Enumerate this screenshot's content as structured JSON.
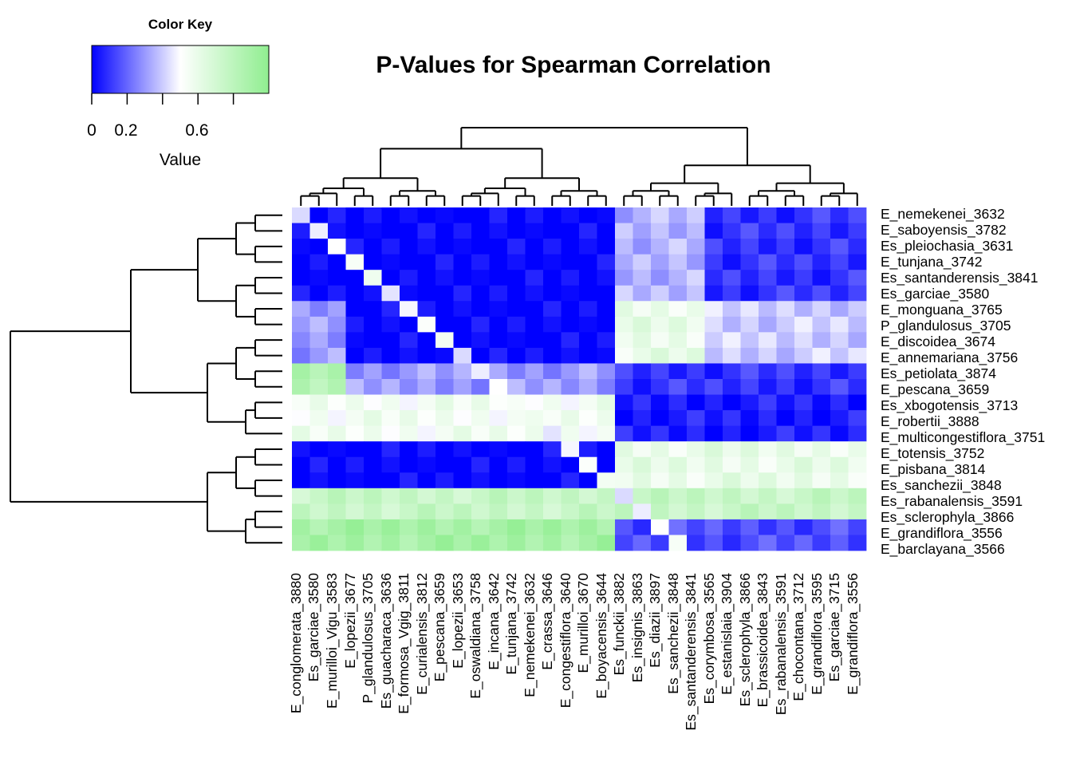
{
  "chart_data": {
    "type": "heatmap",
    "title": "P-Values for Spearman Correlation",
    "color_key": {
      "title": "Color Key",
      "xlabel": "Value",
      "ticks": [
        "0",
        "0.2",
        "0.6"
      ],
      "tick_values": [
        0,
        0.2,
        0.4,
        0.6,
        0.8
      ],
      "range": [
        0,
        1
      ],
      "colors": [
        "#0000ff",
        "#ffffff",
        "#90ee90"
      ]
    },
    "row_labels": [
      "E_nemekenei_3632",
      "E_saboyensis_3782",
      "Es_pleiochasia_3631",
      "E_tunjana_3742",
      "Es_santanderensis_3841",
      "Es_garciae_3580",
      "E_monguana_3765",
      "P_glandulosus_3705",
      "E_discoidea_3674",
      "E_annemariana_3756",
      "Es_petiolata_3874",
      "E_pescana_3659",
      "Es_xbogotensis_3713",
      "E_robertii_3888",
      "E_multicongestiflora_3751",
      "E_totensis_3752",
      "E_pisbana_3814",
      "Es_sanchezii_3848",
      "Es_rabanalensis_3591",
      "Es_sclerophyla_3866",
      "E_grandiflora_3556",
      "E_barclayana_3566"
    ],
    "col_labels": [
      "E_conglomerata_3880",
      "Es_garciae_3580",
      "E_murilloi_Vigu_3583",
      "E_lopezii_3677",
      "P_glandulosus_3705",
      "Es_guacharaca_3636",
      "E_formosa_Vgig_3811",
      "E_curialensis_3812",
      "E_pescana_3659",
      "E_lopezii_3653",
      "E_oswaldiana_3758",
      "E_incana_3642",
      "E_tunjana_3742",
      "E_nemekenei_3632",
      "E_crassa_3646",
      "E_congestiflora_3640",
      "E_murilloi_3670",
      "E_boyacensis_3644",
      "Es_funckii_3882",
      "Es_insignis_3863",
      "Es_diazii_3897",
      "Es_sanchezii_3848",
      "Es_santanderensis_3841",
      "Es_corymbosa_3565",
      "E_estanislaia_3904",
      "Es_sclerophyla_3866",
      "E_brassicoidea_3843",
      "Es_rabanalensis_3591",
      "E_chocontana_3712",
      "E_grandiflora_3595",
      "Es_garciae_3715",
      "E_grandiflora_3556"
    ],
    "blocks": [
      {
        "rows": [
          0,
          5
        ],
        "cols": [
          0,
          17
        ],
        "value": 0.0
      },
      {
        "rows": [
          0,
          5
        ],
        "cols": [
          18,
          22
        ],
        "value": 0.35
      },
      {
        "rows": [
          0,
          5
        ],
        "cols": [
          23,
          31
        ],
        "value": 0.1
      },
      {
        "rows": [
          6,
          9
        ],
        "cols": [
          0,
          2
        ],
        "value": 0.3
      },
      {
        "rows": [
          6,
          9
        ],
        "cols": [
          3,
          17
        ],
        "value": 0.0
      },
      {
        "rows": [
          6,
          9
        ],
        "cols": [
          18,
          22
        ],
        "value": 0.6
      },
      {
        "rows": [
          6,
          9
        ],
        "cols": [
          23,
          31
        ],
        "value": 0.4
      },
      {
        "rows": [
          10,
          11
        ],
        "cols": [
          0,
          2
        ],
        "value": 0.85
      },
      {
        "rows": [
          10,
          11
        ],
        "cols": [
          3,
          17
        ],
        "value": 0.3
      },
      {
        "rows": [
          10,
          11
        ],
        "cols": [
          18,
          31
        ],
        "value": 0.1
      },
      {
        "rows": [
          12,
          14
        ],
        "cols": [
          0,
          17
        ],
        "value": 0.55
      },
      {
        "rows": [
          12,
          14
        ],
        "cols": [
          18,
          31
        ],
        "value": 0.05
      },
      {
        "rows": [
          15,
          17
        ],
        "cols": [
          0,
          17
        ],
        "value": 0.0
      },
      {
        "rows": [
          15,
          17
        ],
        "cols": [
          18,
          31
        ],
        "value": 0.6
      },
      {
        "rows": [
          18,
          19
        ],
        "cols": [
          0,
          31
        ],
        "value": 0.75
      },
      {
        "rows": [
          20,
          21
        ],
        "cols": [
          0,
          17
        ],
        "value": 0.9
      },
      {
        "rows": [
          20,
          21
        ],
        "cols": [
          18,
          31
        ],
        "value": 0.15
      }
    ]
  }
}
